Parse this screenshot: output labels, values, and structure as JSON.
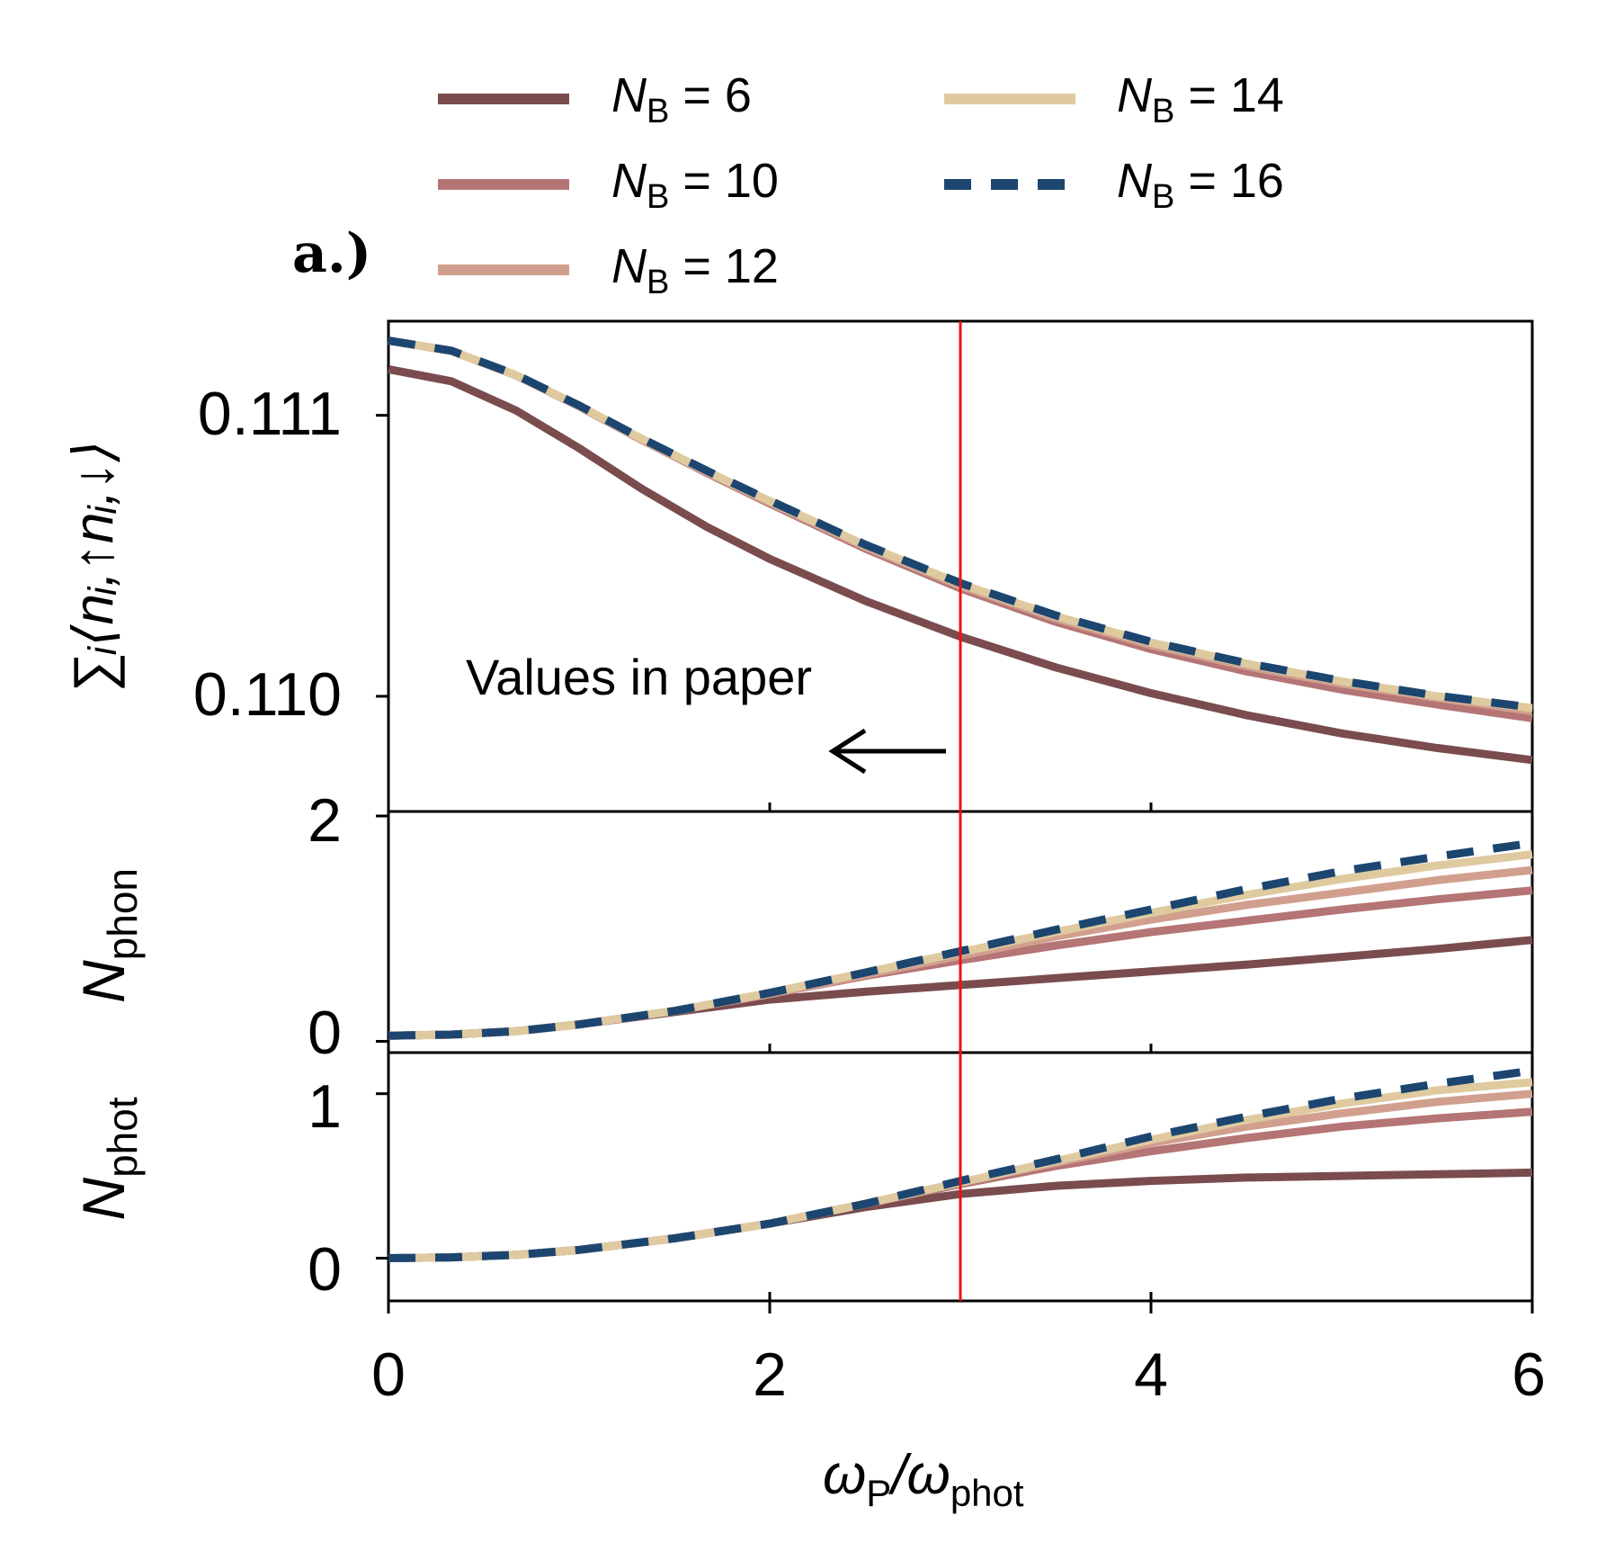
{
  "panel_label": "a.)",
  "annotation": "Values in paper",
  "colors": {
    "nb6": "#7a4c4e",
    "nb10": "#b57475",
    "nb12": "#d19f8e",
    "nb14": "#dfcaa0",
    "nb16": "#1c4670",
    "marker": "#ee1111"
  },
  "legend": {
    "entries": [
      {
        "prefix": "N",
        "sub": "B",
        "suffix": " = 6"
      },
      {
        "prefix": "N",
        "sub": "B",
        "suffix": " = 10"
      },
      {
        "prefix": "N",
        "sub": "B",
        "suffix": " = 12"
      },
      {
        "prefix": "N",
        "sub": "B",
        "suffix": " = 14"
      },
      {
        "prefix": "N",
        "sub": "B",
        "suffix": " = 16"
      }
    ]
  },
  "axes": {
    "x_main": "ω",
    "x_main_sub": "P",
    "x_slash": "/ω",
    "x_slash_sub": "phot",
    "y_top": "∑ᵢ⟨nᵢ,↑nᵢ,↓⟩",
    "y_mid_main": "N",
    "y_mid_sub": "phon",
    "y_bot_main": "N",
    "y_bot_sub": "phot",
    "x_ticks": [
      "0",
      "2",
      "4",
      "6"
    ],
    "y_top_ticks": [
      "0.111",
      "0.110"
    ],
    "y_mid_ticks": [
      "2",
      "0"
    ],
    "y_bot_ticks": [
      "1",
      "0"
    ]
  },
  "chart_data": [
    {
      "type": "line",
      "x_label": "ωP/ωphot",
      "y_label": "∑i⟨ni,↑ni,↓⟩",
      "xlim": [
        0,
        6
      ],
      "ylim": [
        0.10959,
        0.111335
      ],
      "y_ticks": [
        0.11,
        0.111
      ],
      "marker_x": 3.0,
      "x": [
        0,
        0.33,
        0.67,
        1.0,
        1.33,
        1.67,
        2.0,
        2.5,
        3.0,
        3.5,
        4.0,
        4.5,
        5.0,
        5.5,
        6.0
      ],
      "series": [
        {
          "name": "NB = 6",
          "values": [
            111.164,
            111.121,
            111.017,
            110.883,
            110.738,
            110.603,
            110.489,
            110.34,
            110.212,
            110.103,
            110.011,
            109.933,
            109.868,
            109.816,
            109.773
          ]
        },
        {
          "name": "NB = 10",
          "values": [
            111.266,
            111.229,
            111.142,
            111.032,
            110.912,
            110.795,
            110.686,
            110.526,
            110.384,
            110.265,
            110.168,
            110.089,
            110.024,
            109.971,
            109.922
          ]
        },
        {
          "name": "NB = 12",
          "values": [
            111.266,
            111.229,
            111.142,
            111.032,
            110.912,
            110.797,
            110.69,
            110.532,
            110.393,
            110.277,
            110.182,
            110.107,
            110.045,
            109.995,
            109.947
          ]
        },
        {
          "name": "NB = 14",
          "values": [
            111.266,
            111.229,
            111.143,
            111.034,
            110.916,
            110.801,
            110.695,
            110.538,
            110.4,
            110.285,
            110.191,
            110.116,
            110.053,
            110.0,
            109.958
          ]
        },
        {
          "name": "NB = 16",
          "values": [
            111.266,
            111.23,
            111.144,
            111.035,
            110.917,
            110.803,
            110.697,
            110.54,
            110.403,
            110.288,
            110.194,
            110.118,
            110.055,
            110.002,
            109.96
          ]
        }
      ],
      "values_scale_note": "values are in units of 1e-3"
    },
    {
      "type": "line",
      "y_label": "Nphon",
      "xlim": [
        0,
        6
      ],
      "ylim": [
        -0.1,
        2.04
      ],
      "y_ticks": [
        0,
        2
      ],
      "x": [
        0,
        0.33,
        0.67,
        1.0,
        1.5,
        2.0,
        2.5,
        3.0,
        3.5,
        4.0,
        4.5,
        5.0,
        5.5,
        6.0
      ],
      "series": [
        {
          "name": "NB = 6",
          "values": [
            0.05,
            0.06,
            0.09,
            0.15,
            0.26,
            0.37,
            0.44,
            0.5,
            0.56,
            0.62,
            0.68,
            0.75,
            0.82,
            0.9
          ]
        },
        {
          "name": "NB = 10",
          "values": [
            0.05,
            0.06,
            0.09,
            0.15,
            0.27,
            0.42,
            0.58,
            0.72,
            0.85,
            0.97,
            1.07,
            1.17,
            1.26,
            1.34
          ]
        },
        {
          "name": "NB = 12",
          "values": [
            0.05,
            0.06,
            0.09,
            0.15,
            0.27,
            0.42,
            0.59,
            0.76,
            0.93,
            1.08,
            1.21,
            1.32,
            1.43,
            1.52
          ]
        },
        {
          "name": "NB = 14",
          "values": [
            0.05,
            0.06,
            0.09,
            0.15,
            0.27,
            0.43,
            0.61,
            0.79,
            0.97,
            1.14,
            1.3,
            1.44,
            1.56,
            1.66
          ]
        },
        {
          "name": "NB = 16",
          "values": [
            0.05,
            0.06,
            0.09,
            0.15,
            0.27,
            0.43,
            0.61,
            0.8,
            0.99,
            1.17,
            1.35,
            1.51,
            1.64,
            1.76
          ]
        }
      ]
    },
    {
      "type": "line",
      "y_label": "Nphot",
      "xlim": [
        0,
        6
      ],
      "ylim": [
        -0.26,
        1.25
      ],
      "y_ticks": [
        0,
        1
      ],
      "x": [
        0,
        0.33,
        0.67,
        1.0,
        1.5,
        2.0,
        2.5,
        3.0,
        3.5,
        4.0,
        4.5,
        5.0,
        5.5,
        6.0
      ],
      "series": [
        {
          "name": "NB = 6",
          "values": [
            0.0,
            0.005,
            0.02,
            0.05,
            0.12,
            0.21,
            0.31,
            0.39,
            0.44,
            0.47,
            0.49,
            0.5,
            0.51,
            0.52
          ]
        },
        {
          "name": "NB = 10",
          "values": [
            0.0,
            0.005,
            0.02,
            0.05,
            0.12,
            0.21,
            0.33,
            0.45,
            0.56,
            0.65,
            0.73,
            0.8,
            0.85,
            0.89
          ]
        },
        {
          "name": "NB = 12",
          "values": [
            0.0,
            0.005,
            0.02,
            0.05,
            0.12,
            0.21,
            0.33,
            0.46,
            0.58,
            0.7,
            0.8,
            0.88,
            0.95,
            1.0
          ]
        },
        {
          "name": "NB = 14",
          "values": [
            0.0,
            0.005,
            0.02,
            0.05,
            0.12,
            0.21,
            0.33,
            0.46,
            0.59,
            0.72,
            0.84,
            0.94,
            1.02,
            1.07
          ]
        },
        {
          "name": "NB = 16",
          "values": [
            0.0,
            0.005,
            0.02,
            0.05,
            0.12,
            0.21,
            0.33,
            0.47,
            0.6,
            0.74,
            0.86,
            0.97,
            1.06,
            1.14
          ]
        }
      ]
    }
  ]
}
